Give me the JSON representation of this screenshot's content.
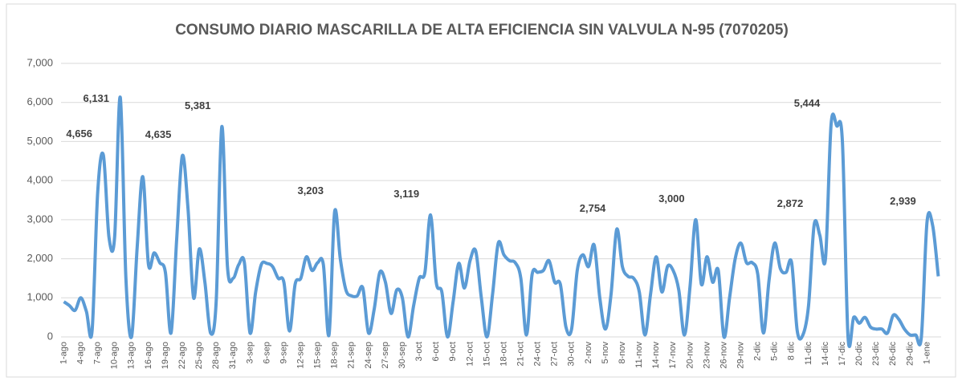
{
  "chart_data": {
    "type": "line",
    "title": "CONSUMO DIARIO MASCARILLA DE ALTA EFICIENCIA SIN VALVULA N-95 (7070205)",
    "categories": [
      "1-ago",
      null,
      null,
      "4-ago",
      null,
      null,
      "7-ago",
      null,
      null,
      "10-ago",
      null,
      null,
      "13-ago",
      null,
      null,
      "16-ago",
      null,
      null,
      "19-ago",
      null,
      null,
      "22-ago",
      null,
      null,
      "25-ago",
      null,
      null,
      "28-ago",
      null,
      null,
      "31-ago",
      null,
      null,
      "3-sep",
      null,
      null,
      "6-sep",
      null,
      null,
      "9-sep",
      null,
      null,
      "12-sep",
      null,
      null,
      "15-sep",
      null,
      null,
      "18-sep",
      null,
      null,
      "21-sep",
      null,
      null,
      "24-sep",
      null,
      null,
      "27-sep",
      null,
      null,
      "30-sep",
      null,
      null,
      "3-oct",
      null,
      null,
      "6-oct",
      null,
      null,
      "9-oct",
      null,
      null,
      "12-oct",
      null,
      null,
      "15-oct",
      null,
      null,
      "18-oct",
      null,
      null,
      "21-oct",
      null,
      null,
      "24-oct",
      null,
      null,
      "27-oct",
      null,
      null,
      "30-oct",
      null,
      null,
      "2-nov",
      null,
      null,
      "5-nov",
      null,
      null,
      "8-nov",
      null,
      null,
      "11-nov",
      null,
      null,
      "14-nov",
      null,
      null,
      "17-nov",
      null,
      null,
      "20-nov",
      null,
      null,
      "23-nov",
      null,
      null,
      "26-nov",
      null,
      null,
      "29-nov",
      null,
      null,
      "2-dic",
      null,
      null,
      "5-dic",
      null,
      null,
      "8 dic",
      null,
      null,
      "11-dic",
      null,
      null,
      "14-dic",
      null,
      null,
      "17-dic",
      null,
      null,
      "20-dic",
      null,
      null,
      "23-dic",
      null,
      null,
      "26-dic",
      null,
      null,
      "29-dic",
      null,
      null,
      "1-ene",
      null,
      null
    ],
    "values": [
      900,
      800,
      680,
      1000,
      650,
      150,
      3700,
      4656,
      2550,
      2550,
      6131,
      1500,
      0,
      2300,
      4100,
      1850,
      2150,
      1900,
      1650,
      100,
      2500,
      4635,
      3300,
      1000,
      2250,
      1400,
      100,
      900,
      5381,
      1800,
      1500,
      1850,
      1900,
      100,
      1150,
      1850,
      1880,
      1800,
      1500,
      1400,
      150,
      1350,
      1500,
      2050,
      1700,
      1900,
      1850,
      50,
      3203,
      2000,
      1200,
      1050,
      1050,
      1250,
      100,
      700,
      1650,
      1400,
      600,
      1200,
      1000,
      0,
      800,
      1500,
      1650,
      3119,
      1400,
      1150,
      0,
      900,
      1880,
      1250,
      1950,
      2200,
      1000,
      0,
      1100,
      2400,
      2100,
      1950,
      1900,
      1500,
      50,
      1600,
      1650,
      1700,
      1950,
      1400,
      1350,
      250,
      200,
      1700,
      2100,
      1800,
      2350,
      1000,
      200,
      1100,
      2754,
      1800,
      1550,
      1500,
      1150,
      50,
      1100,
      2050,
      1150,
      1800,
      1700,
      1200,
      50,
      1300,
      3000,
      1350,
      2050,
      1400,
      1700,
      0,
      1000,
      2000,
      2400,
      1900,
      1900,
      1600,
      100,
      1450,
      2400,
      1750,
      1650,
      1900,
      150,
      50,
      800,
      2872,
      2600,
      2000,
      5444,
      5400,
      5000,
      0,
      500,
      350,
      500,
      250,
      200,
      200,
      100,
      550,
      450,
      200,
      50,
      50,
      0,
      2939,
      2850,
      1550
    ],
    "value_labels": [
      null,
      null,
      null,
      null,
      null,
      null,
      null,
      "4,656",
      null,
      null,
      "6,131",
      null,
      null,
      null,
      null,
      null,
      null,
      null,
      null,
      null,
      null,
      "4,635",
      null,
      null,
      null,
      null,
      null,
      null,
      "5,381",
      null,
      null,
      null,
      null,
      null,
      null,
      null,
      null,
      null,
      null,
      null,
      null,
      null,
      null,
      null,
      null,
      null,
      null,
      null,
      "3,203",
      null,
      null,
      null,
      null,
      null,
      null,
      null,
      null,
      null,
      null,
      null,
      null,
      null,
      null,
      null,
      null,
      "3,119",
      null,
      null,
      null,
      null,
      null,
      null,
      null,
      null,
      null,
      null,
      null,
      null,
      null,
      null,
      null,
      null,
      null,
      null,
      null,
      null,
      null,
      null,
      null,
      null,
      null,
      null,
      null,
      null,
      null,
      null,
      null,
      null,
      "2,754",
      null,
      null,
      null,
      null,
      null,
      null,
      null,
      null,
      null,
      null,
      null,
      null,
      null,
      "3,000",
      null,
      null,
      null,
      null,
      null,
      null,
      null,
      null,
      null,
      null,
      null,
      null,
      null,
      null,
      null,
      null,
      null,
      null,
      null,
      null,
      "2,872",
      null,
      null,
      "5,444",
      null,
      null,
      null,
      null,
      null,
      null,
      null,
      null,
      null,
      null,
      null,
      null,
      null,
      null,
      null,
      null,
      "2,939",
      null,
      null
    ],
    "color": "#5b9bd5",
    "ylim": [
      0,
      7000
    ],
    "yticks": [
      0,
      {
        "value": 1000,
        "label": "1,000"
      },
      {
        "value": 2000,
        "label": "2,000"
      },
      {
        "value": 3000,
        "label": "3,000"
      },
      {
        "value": 4000,
        "label": "4,000"
      },
      {
        "value": 5000,
        "label": "5,000"
      },
      {
        "value": 6000,
        "label": "6,000"
      },
      {
        "value": 7000,
        "label": "7,000"
      }
    ],
    "grid": true
  }
}
